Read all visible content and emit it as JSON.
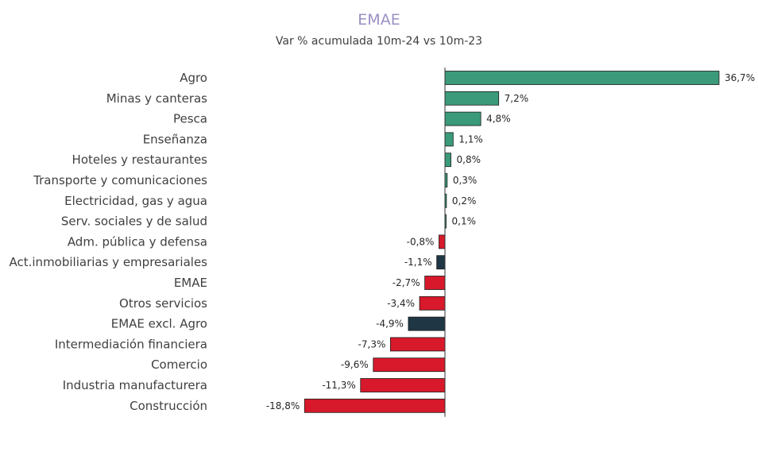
{
  "chart_data": {
    "type": "bar",
    "orientation": "horizontal",
    "title": "EMAE",
    "subtitle": "Var % acumulada 10m-24 vs 10m-23",
    "categories": [
      "Agro",
      "Minas y canteras",
      "Pesca",
      "Enseñanza",
      "Hoteles y restaurantes",
      "Transporte y comunicaciones",
      "Electricidad, gas y agua",
      "Serv. sociales y de salud",
      "Adm. pública y defensa",
      "Act.inmobiliarias y empresariales",
      "EMAE",
      "Otros servicios",
      "EMAE excl. Agro",
      "Intermediación financiera",
      "Comercio",
      "Industria manufacturera",
      "Construcción"
    ],
    "values": [
      36.7,
      7.2,
      4.8,
      1.1,
      0.8,
      0.3,
      0.2,
      0.1,
      -0.8,
      -1.1,
      -2.7,
      -3.4,
      -4.9,
      -7.3,
      -9.6,
      -11.3,
      -18.8
    ],
    "labels": [
      "36,7%",
      "7,2%",
      "4,8%",
      "1,1%",
      "0,8%",
      "0,3%",
      "0,2%",
      "0,1%",
      "-0,8%",
      "-1,1%",
      "-2,7%",
      "-3,4%",
      "-4,9%",
      "-7,3%",
      "-9,6%",
      "-11,3%",
      "-18,8%"
    ],
    "bar_colors": [
      "#3a9a7a",
      "#3a9a7a",
      "#3a9a7a",
      "#3a9a7a",
      "#3a9a7a",
      "#3a9a7a",
      "#3a9a7a",
      "#3a9a7a",
      "#d7192b",
      "#1f3644",
      "#d7192b",
      "#d7192b",
      "#1f3644",
      "#d7192b",
      "#d7192b",
      "#d7192b",
      "#d7192b"
    ],
    "colors": {
      "positive": "#3a9a7a",
      "negative": "#d7192b",
      "aggregate": "#1f3644",
      "title": "#9b8fc4"
    },
    "grid": false
  }
}
